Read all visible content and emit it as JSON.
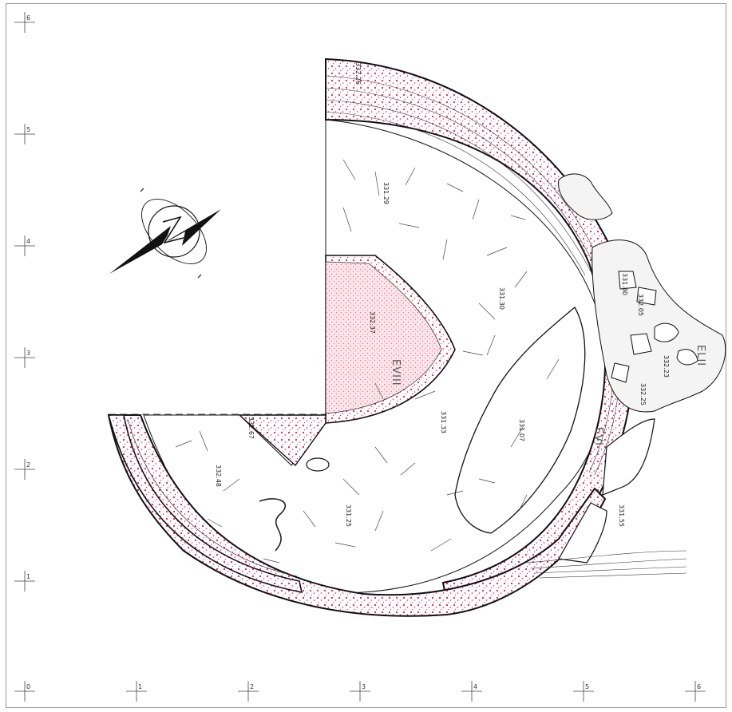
{
  "grid": {
    "x_ticks": [
      "0",
      "1",
      "2",
      "3",
      "4",
      "5",
      "6"
    ],
    "y_ticks": [
      "1",
      "2",
      "3",
      "4",
      "5",
      "6"
    ]
  },
  "units": [
    "EVIII",
    "ELII",
    "EVI"
  ],
  "elevations": [
    "331.29",
    "331.30",
    "331.33",
    "331.07",
    "331.25",
    "332.48",
    "331.55",
    "332.37",
    "332.25",
    "332.23",
    "331.80",
    "332.05",
    "332.26",
    "332.67"
  ],
  "colors": {
    "stipple": "#e8194a",
    "fill_pink": "#fbe3ea",
    "line": "#111111",
    "frame": "#999999"
  },
  "icons": {
    "north_arrow": "north-arrow-icon"
  }
}
